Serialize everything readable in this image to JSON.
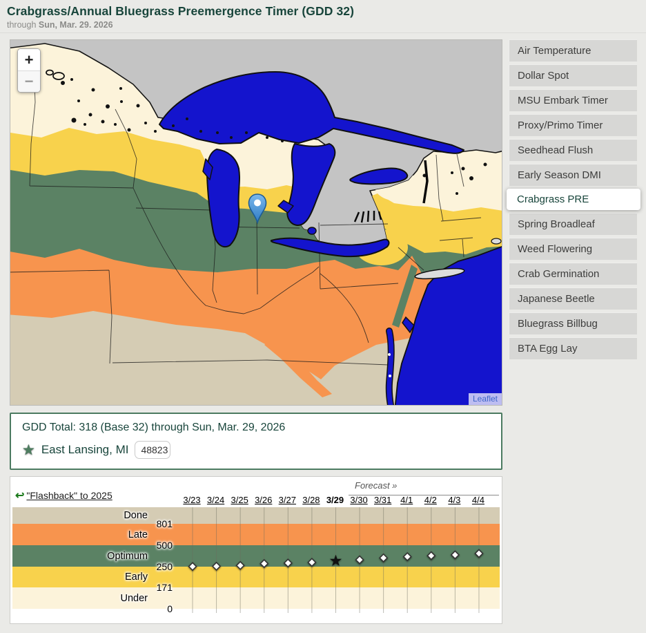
{
  "header": {
    "title": "Crabgrass/Annual Bluegrass Preemergence Timer (GDD 32)",
    "subtitle_prefix": "through ",
    "subtitle_date": "Sun, Mar. 29. 2026"
  },
  "sidebar": {
    "selected": "Crabgrass PRE",
    "items": [
      {
        "label": "Air Temperature"
      },
      {
        "label": "Dollar Spot"
      },
      {
        "label": "MSU Embark Timer"
      },
      {
        "label": "Proxy/Primo Timer"
      },
      {
        "label": "Seedhead Flush"
      },
      {
        "label": "Early Season DMI"
      },
      {
        "label": "Crabgrass PRE"
      },
      {
        "label": "Spring Broadleaf"
      },
      {
        "label": "Weed Flowering"
      },
      {
        "label": "Crab Germination"
      },
      {
        "label": "Japanese Beetle"
      },
      {
        "label": "Bluegrass Billbug"
      },
      {
        "label": "BTA Egg Lay"
      }
    ]
  },
  "map": {
    "zoom_in": "+",
    "zoom_out": "−",
    "attribution": "Leaflet",
    "pin_location": "East Lansing, MI"
  },
  "gdd_box": {
    "total_line": "GDD Total: 318 (Base 32) through Sun, Mar. 29, 2026",
    "star_icon": "★",
    "location": "East Lansing, MI",
    "zip_value": "48823"
  },
  "timeline": {
    "flashback_arrow": "↩",
    "flashback_label": "\"Flashback\" to 2025",
    "forecast_label": "Forecast »"
  },
  "chart_data": {
    "type": "scatter",
    "title": "Crabgrass/Annual Bluegrass Preemergence GDD timeline",
    "x_labels": [
      "3/23",
      "3/24",
      "3/25",
      "3/26",
      "3/27",
      "3/28",
      "3/29",
      "3/30",
      "3/31",
      "4/1",
      "4/2",
      "4/3",
      "4/4"
    ],
    "today_label": "3/29",
    "today_index": 6,
    "forecast_start_index": 7,
    "series": [
      {
        "name": "GDD Total (Base 32)",
        "values": [
          252,
          255,
          264,
          286,
          292,
          300,
          318,
          330,
          352,
          366,
          378,
          388,
          404
        ]
      }
    ],
    "labeled_value": {
      "x": "3/29",
      "y": 318
    },
    "y_bands": [
      {
        "label": "Done",
        "min": 801,
        "max": null,
        "color_key": "band_done"
      },
      {
        "label": "Late",
        "min": 500,
        "max": 801,
        "color_key": "band_late"
      },
      {
        "label": "Optimum",
        "min": 250,
        "max": 500,
        "color_key": "band_optimum"
      },
      {
        "label": "Early",
        "min": 171,
        "max": 250,
        "color_key": "band_early"
      },
      {
        "label": "Under",
        "min": 0,
        "max": 171,
        "color_key": "band_under"
      }
    ],
    "y_tick_labels": [
      "801",
      "500",
      "250",
      "171",
      "0"
    ],
    "grid": true,
    "marker_today": "star",
    "marker_other": "diamond",
    "legend_position": "left-inside"
  },
  "colors": {
    "accent_green": "#18453B",
    "page_bg": "#eaeae7",
    "sidebar_item_bg": "#d7d7d5",
    "band_done": "#d5ccb4",
    "band_late": "#f7944e",
    "band_optimum": "#5b8264",
    "band_early": "#f8d24c",
    "band_under": "#fcf3da",
    "water_blue": "#1414cd",
    "no_data_gray": "#c4c4c4",
    "leaflet_link": "#3c64c8",
    "pin_blue": "#3d8fdd",
    "flashback_arrow_green": "#1c7a1c",
    "marker_star": "#111111"
  }
}
